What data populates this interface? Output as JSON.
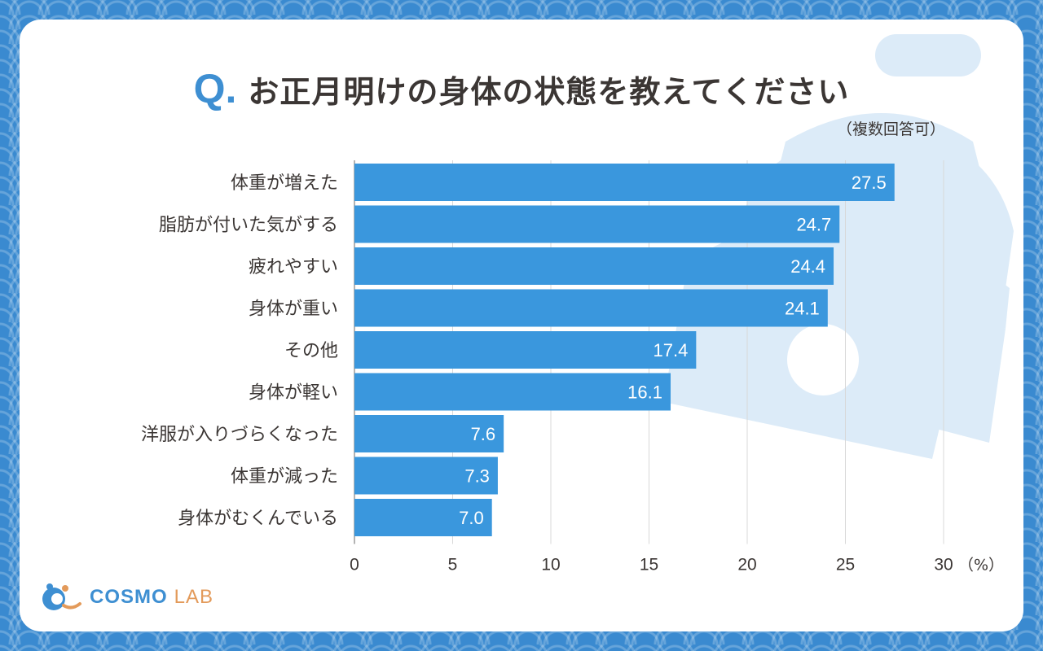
{
  "header": {
    "q_mark": "Q.",
    "question": "お正月明けの身体の状態を教えてください",
    "note": "（複数回答可）"
  },
  "chart_data": {
    "type": "bar",
    "orientation": "horizontal",
    "categories": [
      "体重が増えた",
      "脂肪が付いた気がする",
      "疲れやすい",
      "身体が重い",
      "その他",
      "身体が軽い",
      "洋服が入りづらくなった",
      "体重が減った",
      "身体がむくんでいる"
    ],
    "values": [
      27.5,
      24.7,
      24.4,
      24.1,
      17.4,
      16.1,
      7.6,
      7.3,
      7.0
    ],
    "value_labels": [
      "27.5",
      "24.7",
      "24.4",
      "24.1",
      "17.4",
      "16.1",
      "7.6",
      "7.3",
      "7.0"
    ],
    "xlim": [
      0,
      30
    ],
    "xticks": [
      "0",
      "5",
      "10",
      "15",
      "20",
      "25",
      "30"
    ],
    "xunit": "（%）",
    "grid": true,
    "bar_color": "#3a97dd",
    "gridline_color": "#d8d8d8"
  },
  "brand": {
    "name_part1": "COSMO",
    "name_part2": "LAB",
    "primary_color": "#3e8fd2",
    "accent_color": "#e39a5a"
  }
}
